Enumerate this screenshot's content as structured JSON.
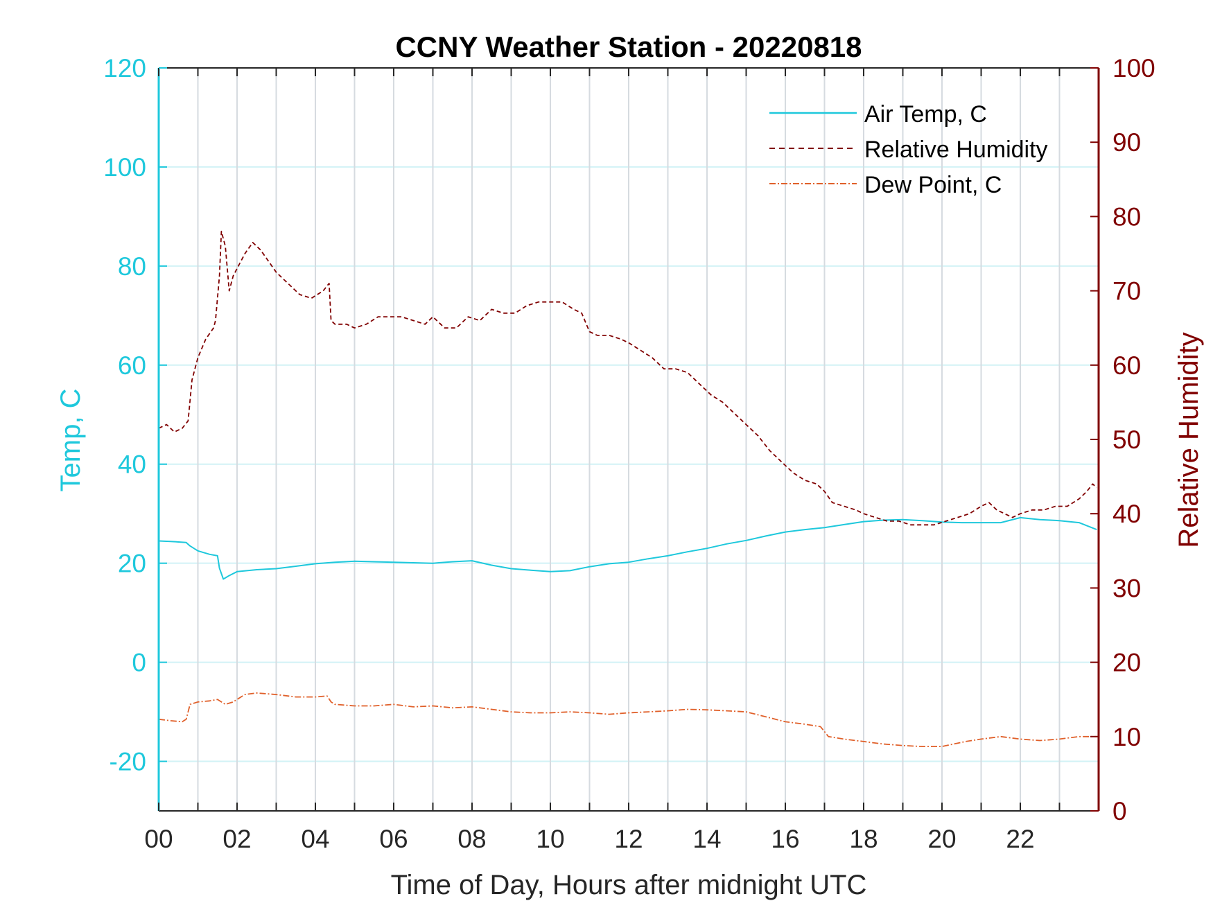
{
  "chart_data": {
    "type": "line",
    "title": "CCNY Weather Station - 20220818",
    "xlabel": "Time of Day, Hours after midnight UTC",
    "ylabel_left": "Temp, C",
    "ylabel_right": "Relative Humidity",
    "xlim": [
      0,
      24
    ],
    "ylim_left": [
      -30,
      120
    ],
    "ylim_right": [
      0,
      100
    ],
    "x_ticks": [
      0,
      2,
      4,
      6,
      8,
      10,
      12,
      14,
      16,
      18,
      20,
      22
    ],
    "x_tick_labels": [
      "00",
      "02",
      "04",
      "06",
      "08",
      "10",
      "12",
      "14",
      "16",
      "18",
      "20",
      "22"
    ],
    "x_vertical_gridlines": [
      1,
      2,
      3,
      4,
      5,
      6,
      7,
      8,
      9,
      10,
      11,
      12,
      13,
      14,
      15,
      16,
      17,
      18,
      19,
      20,
      21,
      22,
      23
    ],
    "y_left_ticks": [
      -20,
      0,
      20,
      40,
      60,
      80,
      100,
      120
    ],
    "y_left_tick_labels": [
      "-20",
      "0",
      "20",
      "40",
      "60",
      "80",
      "100",
      "120"
    ],
    "y_right_ticks": [
      0,
      10,
      20,
      30,
      40,
      50,
      60,
      70,
      80,
      90,
      100
    ],
    "y_right_tick_labels": [
      "0",
      "10",
      "20",
      "30",
      "40",
      "50",
      "60",
      "70",
      "80",
      "90",
      "100"
    ],
    "colors": {
      "left_axis": "#1ec8dc",
      "right_axis": "#800000",
      "air_temp": "#1ec8dc",
      "relative_humidity": "#800000",
      "dew_point": "#e0602a",
      "vgrid": "#d6dbe0",
      "hgrid": "#d2f2f6"
    },
    "legend_position": "top-right",
    "series": [
      {
        "name": "Air Temp, C",
        "axis": "left",
        "style": "solid",
        "x": [
          0,
          0.3,
          0.7,
          0.8,
          1.0,
          1.3,
          1.5,
          1.55,
          1.65,
          1.8,
          2.0,
          2.5,
          3.0,
          3.5,
          4.0,
          4.5,
          5.0,
          5.5,
          6.0,
          6.5,
          7.0,
          7.5,
          8.0,
          8.5,
          9.0,
          9.5,
          10.0,
          10.5,
          11.0,
          11.5,
          12.0,
          12.5,
          13.0,
          13.5,
          14.0,
          14.5,
          15.0,
          15.5,
          16.0,
          16.5,
          17.0,
          17.5,
          18.0,
          18.5,
          19.0,
          19.5,
          20.0,
          20.5,
          21.0,
          21.5,
          22.0,
          22.5,
          23.0,
          23.5,
          23.95
        ],
        "values": [
          24.5,
          24.4,
          24.2,
          23.5,
          22.5,
          21.8,
          21.5,
          19.0,
          16.8,
          17.5,
          18.3,
          18.7,
          18.9,
          19.4,
          19.9,
          20.2,
          20.4,
          20.3,
          20.2,
          20.1,
          20.0,
          20.3,
          20.5,
          19.6,
          18.9,
          18.6,
          18.3,
          18.5,
          19.3,
          19.9,
          20.2,
          20.9,
          21.5,
          22.3,
          23.0,
          23.9,
          24.6,
          25.5,
          26.3,
          26.8,
          27.2,
          27.8,
          28.4,
          28.7,
          28.8,
          28.6,
          28.3,
          28.2,
          28.2,
          28.2,
          29.2,
          28.8,
          28.6,
          28.2,
          26.8
        ]
      },
      {
        "name": "Relative Humidity",
        "axis": "right",
        "style": "dashed",
        "x": [
          0,
          0.2,
          0.4,
          0.6,
          0.75,
          0.85,
          1.0,
          1.2,
          1.4,
          1.45,
          1.55,
          1.6,
          1.7,
          1.8,
          1.9,
          2.0,
          2.2,
          2.4,
          2.6,
          2.8,
          3.0,
          3.3,
          3.6,
          3.9,
          4.2,
          4.35,
          4.4,
          4.5,
          4.8,
          5.0,
          5.3,
          5.6,
          5.9,
          6.2,
          6.5,
          6.8,
          7.0,
          7.3,
          7.6,
          7.9,
          8.2,
          8.5,
          8.8,
          9.1,
          9.4,
          9.7,
          10.0,
          10.3,
          10.6,
          10.8,
          11.0,
          11.2,
          11.5,
          11.8,
          12.0,
          12.3,
          12.6,
          12.9,
          13.2,
          13.5,
          13.8,
          14.1,
          14.4,
          14.7,
          15.0,
          15.3,
          15.6,
          15.9,
          16.2,
          16.5,
          16.8,
          17.0,
          17.2,
          17.5,
          17.8,
          18.0,
          18.3,
          18.6,
          18.9,
          19.2,
          19.5,
          19.8,
          20.1,
          20.4,
          20.7,
          21.0,
          21.2,
          21.4,
          21.6,
          21.8,
          22.0,
          22.3,
          22.6,
          22.9,
          23.2,
          23.5,
          23.7,
          23.85,
          23.95
        ],
        "values": [
          51.5,
          52.0,
          51.0,
          51.5,
          52.5,
          58.0,
          61.0,
          63.5,
          65.0,
          66.0,
          72.0,
          78.0,
          76.0,
          70.0,
          72.0,
          73.0,
          75.0,
          76.5,
          75.5,
          74.0,
          72.5,
          71.0,
          69.5,
          69.0,
          70.0,
          71.0,
          66.0,
          65.5,
          65.5,
          65.0,
          65.5,
          66.5,
          66.5,
          66.5,
          66.0,
          65.5,
          66.5,
          65.0,
          65.0,
          66.5,
          66.0,
          67.5,
          67.0,
          67.0,
          68.0,
          68.5,
          68.5,
          68.5,
          67.5,
          67.0,
          64.5,
          64.0,
          64.0,
          63.5,
          63.0,
          62.0,
          61.0,
          59.5,
          59.5,
          59.0,
          57.5,
          56.0,
          55.0,
          53.5,
          52.0,
          50.5,
          48.5,
          47.0,
          45.5,
          44.5,
          44.0,
          43.0,
          41.5,
          41.0,
          40.5,
          40.0,
          39.5,
          39.0,
          39.0,
          38.5,
          38.5,
          38.5,
          39.0,
          39.5,
          40.0,
          41.0,
          41.5,
          40.5,
          40.0,
          39.5,
          40.0,
          40.5,
          40.5,
          41.0,
          41.0,
          42.0,
          43.0,
          44.0,
          43.5
        ]
      },
      {
        "name": "Dew Point, C",
        "axis": "left",
        "style": "dashdot",
        "x": [
          0,
          0.3,
          0.6,
          0.7,
          0.8,
          1.0,
          1.3,
          1.5,
          1.7,
          1.9,
          2.0,
          2.2,
          2.5,
          3.0,
          3.5,
          4.0,
          4.3,
          4.4,
          4.5,
          5.0,
          5.5,
          6.0,
          6.5,
          7.0,
          7.5,
          8.0,
          8.5,
          9.0,
          9.5,
          10.0,
          10.5,
          11.0,
          11.5,
          12.0,
          12.5,
          13.0,
          13.5,
          14.0,
          14.5,
          15.0,
          15.5,
          16.0,
          16.5,
          16.9,
          17.1,
          17.5,
          18.0,
          18.5,
          19.0,
          19.5,
          20.0,
          20.3,
          20.6,
          21.0,
          21.5,
          22.0,
          22.5,
          23.0,
          23.5,
          23.95
        ],
        "values": [
          -11.5,
          -11.8,
          -12.0,
          -11.5,
          -8.5,
          -8.0,
          -7.8,
          -7.5,
          -8.5,
          -8.0,
          -7.5,
          -6.5,
          -6.2,
          -6.5,
          -7.0,
          -7.0,
          -6.8,
          -8.0,
          -8.5,
          -8.8,
          -8.8,
          -8.5,
          -9.0,
          -8.8,
          -9.2,
          -9.0,
          -9.5,
          -10.0,
          -10.2,
          -10.2,
          -10.0,
          -10.2,
          -10.5,
          -10.2,
          -10.0,
          -9.8,
          -9.5,
          -9.6,
          -9.8,
          -10.0,
          -11.0,
          -12.0,
          -12.5,
          -13.0,
          -15.0,
          -15.5,
          -16.0,
          -16.5,
          -16.8,
          -17.0,
          -17.0,
          -16.5,
          -16.0,
          -15.5,
          -15.0,
          -15.5,
          -15.8,
          -15.5,
          -15.0,
          -15.0
        ]
      }
    ]
  }
}
